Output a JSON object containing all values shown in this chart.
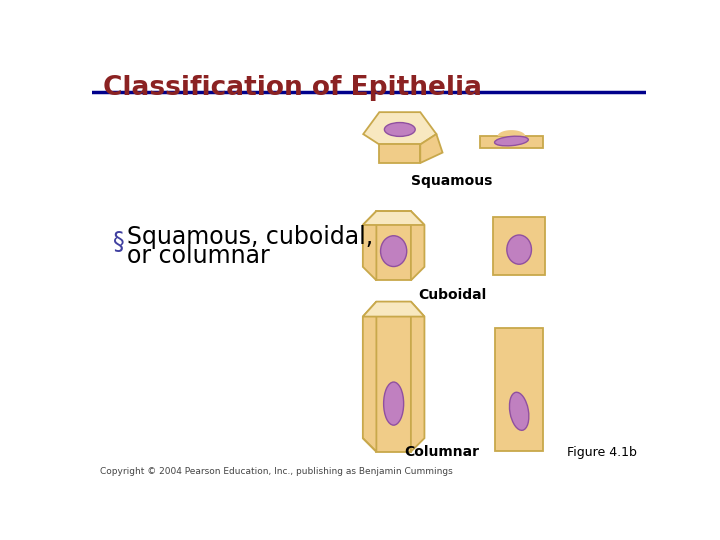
{
  "title": "Classification of Epithelia",
  "title_color": "#8B2222",
  "title_fontsize": 19,
  "bg_color": "#FFFFFF",
  "header_line_color": "#00008B",
  "bullet_char": "§",
  "bullet_text_line1": "Squamous, cuboidal,",
  "bullet_text_line2": "or columnar",
  "bullet_fontsize": 17,
  "cell_fill": "#F0CC88",
  "cell_edge": "#C8A84B",
  "cell_fill_light": "#F8E8C0",
  "nucleus_fill": "#C080C0",
  "nucleus_edge": "#9050A0",
  "label_squamous": "Squamous",
  "label_cuboidal": "Cuboidal",
  "label_columnar": "Columnar",
  "label_fontsize": 10,
  "label_fontweight": "bold",
  "figure_label": "Figure 4.1b",
  "copyright_text": "Copyright © 2004 Pearson Education, Inc., publishing as Benjamin Cummings"
}
